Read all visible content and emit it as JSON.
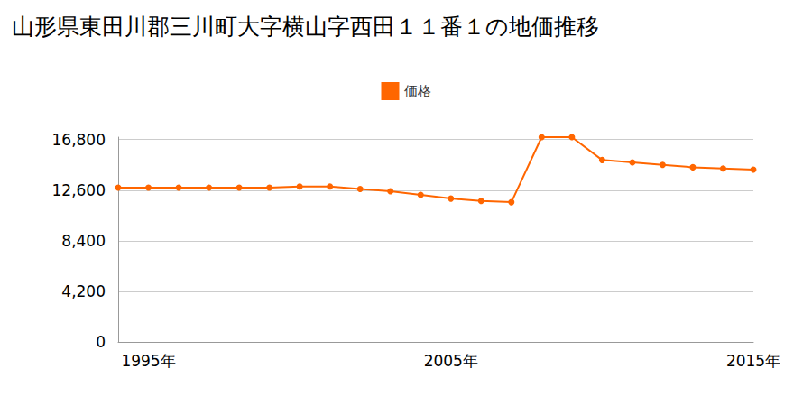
{
  "chart_data": {
    "type": "line",
    "title": "山形県東田川郡三川町大字横山字西田１１番１の地価推移",
    "categories": [
      null,
      "1995年",
      null,
      null,
      null,
      null,
      null,
      null,
      null,
      null,
      null,
      "2005年",
      null,
      null,
      null,
      null,
      null,
      null,
      null,
      null,
      null,
      "2015年"
    ],
    "series": [
      {
        "name": "価格",
        "color": "#ff6600",
        "marker": "circle",
        "values": [
          12800,
          12800,
          12800,
          12800,
          12800,
          12800,
          12900,
          12900,
          12700,
          12500,
          12200,
          11900,
          11700,
          11600,
          17000,
          17000,
          15100,
          14900,
          14700,
          14500,
          14400,
          14300
        ]
      }
    ],
    "ylim": [
      0,
      17000
    ],
    "yticks": [
      0,
      {
        "value": 4200,
        "label": "4,200"
      },
      {
        "value": 8400,
        "label": "8,400"
      },
      {
        "value": 12600,
        "label": "12,600"
      },
      {
        "value": 16800,
        "label": "16,800"
      }
    ],
    "grid": true,
    "legend": "top"
  }
}
